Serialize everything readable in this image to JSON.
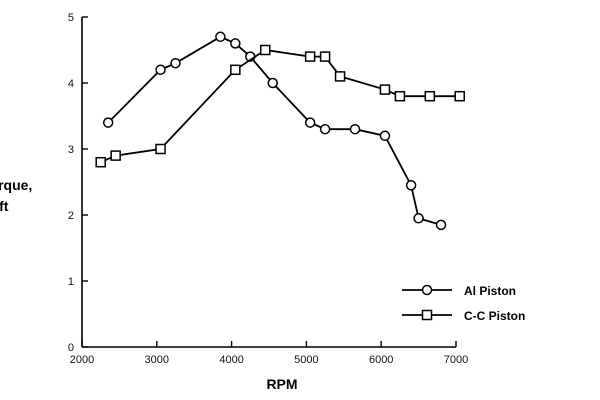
{
  "chart_data": {
    "type": "line",
    "title": "",
    "xlabel": "RPM",
    "ylabel_lines": [
      "Torque,",
      "lb-ft"
    ],
    "xlim": [
      2000,
      7000
    ],
    "ylim": [
      0,
      5
    ],
    "xticks": [
      2000,
      3000,
      4000,
      5000,
      6000,
      7000
    ],
    "yticks": [
      0,
      1,
      2,
      3,
      4,
      5
    ],
    "grid": false,
    "legend_position": "bottom-right",
    "series": [
      {
        "name": "Al Piston",
        "marker": "circle",
        "x": [
          2350,
          3050,
          3250,
          3850,
          4050,
          4250,
          4550,
          5050,
          5250,
          5650,
          6050,
          6400,
          6500,
          6800
        ],
        "y": [
          3.4,
          4.2,
          4.3,
          4.7,
          4.6,
          4.4,
          4.0,
          3.4,
          3.3,
          3.3,
          3.2,
          2.45,
          1.95,
          1.85
        ]
      },
      {
        "name": "C-C Piston",
        "marker": "square",
        "x": [
          2250,
          2450,
          3050,
          4050,
          4450,
          5050,
          5250,
          5450,
          6050,
          6250,
          6650,
          7050
        ],
        "y": [
          2.8,
          2.9,
          3.0,
          4.2,
          4.5,
          4.4,
          4.4,
          4.1,
          3.9,
          3.8,
          3.8,
          3.8
        ]
      }
    ]
  }
}
